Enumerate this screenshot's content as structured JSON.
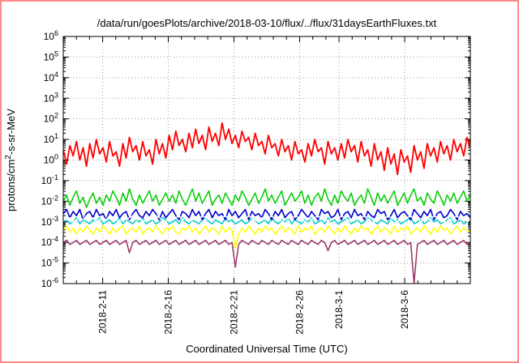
{
  "colors": {
    "frame_border": "#ff8a8a",
    "plot_border": "#000000",
    "grid": "#999999",
    "background": "#ffffff",
    "text": "#000000"
  },
  "title": "/data/run/goesPlots/archive/2018-03-10/flux/../flux/31daysEarthFluxes.txt",
  "x_axis": {
    "label": "Coordinated Universal Time (UTC)",
    "x_unit": "days",
    "ticks": [
      {
        "day": 3,
        "label": "2018-2-11"
      },
      {
        "day": 8,
        "label": "2018-2-16"
      },
      {
        "day": 13,
        "label": "2018-2-21"
      },
      {
        "day": 18,
        "label": "2018-2-26"
      },
      {
        "day": 21,
        "label": "2018-3-1"
      },
      {
        "day": 26,
        "label": "2018-3-6"
      }
    ]
  },
  "y_axis": {
    "unit_parts": [
      {
        "text": "protons/cm"
      },
      {
        "text": "2",
        "sup": true
      },
      {
        "text": "-s-sr-MeV"
      }
    ],
    "exponent_range": [
      -6,
      6
    ],
    "tick_exponents": [
      6,
      5,
      4,
      3,
      2,
      1,
      0,
      -1,
      -2,
      -3,
      -4,
      -5,
      -6
    ]
  },
  "chart_data": {
    "type": "line",
    "x_range": [
      0,
      31
    ],
    "y_scale": "log10 exponents of protons/cm2-s-sr-MeV",
    "grid": true,
    "legend": false,
    "series": [
      {
        "name": "maroon",
        "color": "#993366",
        "width": 1.5,
        "log10_values": [
          -4.0,
          -3.9,
          -4.1,
          -4.0,
          -3.9,
          -4.1,
          -4.0,
          -3.9,
          -4.1,
          -4.0,
          -3.9,
          -4.1,
          -4.0,
          -3.9,
          -4.1,
          -4.0,
          -3.9,
          -4.1,
          -4.0,
          -3.9,
          -4.5,
          -4.0,
          -3.9,
          -4.1,
          -4.0,
          -3.9,
          -4.1,
          -4.0,
          -3.9,
          -4.1,
          -4.0,
          -3.9,
          -4.1,
          -4.0,
          -3.9,
          -4.1,
          -4.0,
          -3.9,
          -4.1,
          -4.0,
          -3.9,
          -4.1,
          -4.0,
          -3.9,
          -4.1,
          -4.0,
          -3.9,
          -4.1,
          -4.0,
          -3.9,
          -4.1,
          -4.0,
          -5.2,
          -4.1,
          -3.9,
          -4.0,
          -4.1,
          -3.9,
          -4.0,
          -4.1,
          -3.9,
          -4.0,
          -4.1,
          -3.9,
          -4.0,
          -4.1,
          -3.9,
          -4.0,
          -4.1,
          -3.9,
          -4.0,
          -4.1,
          -3.9,
          -4.0,
          -4.1,
          -3.9,
          -4.0,
          -4.1,
          -3.9,
          -4.0,
          -4.4,
          -4.0,
          -3.9,
          -4.1,
          -4.0,
          -3.9,
          -4.1,
          -4.0,
          -3.9,
          -4.1,
          -4.0,
          -3.9,
          -4.1,
          -4.0,
          -3.9,
          -4.1,
          -4.0,
          -3.9,
          -4.1,
          -4.0,
          -3.9,
          -4.1,
          -4.0,
          -3.9,
          -4.1,
          -4.0,
          -6.0,
          -4.1,
          -4.0,
          -3.9,
          -4.1,
          -4.0,
          -3.9,
          -4.1,
          -4.0,
          -3.9,
          -4.1,
          -4.0,
          -3.9,
          -4.1,
          -4.0,
          -3.9,
          -4.1,
          -4.0
        ]
      },
      {
        "name": "yellow",
        "color": "#ffff00",
        "width": 1.5,
        "log10_values": [
          -3.4,
          -3.2,
          -3.5,
          -3.3,
          -3.6,
          -3.3,
          -3.5,
          -3.2,
          -3.4,
          -3.6,
          -3.3,
          -3.5,
          -3.2,
          -3.4,
          -3.6,
          -3.3,
          -3.5,
          -3.3,
          -3.2,
          -3.6,
          -3.4,
          -3.3,
          -3.5,
          -3.2,
          -3.6,
          -3.4,
          -3.3,
          -3.5,
          -3.2,
          -3.4,
          -3.6,
          -3.3,
          -3.4,
          -3.2,
          -3.5,
          -3.6,
          -3.3,
          -3.4,
          -3.2,
          -3.5,
          -3.3,
          -3.6,
          -3.4,
          -3.2,
          -3.5,
          -3.3,
          -3.4,
          -3.6,
          -3.2,
          -3.5,
          -3.3,
          -3.4,
          -4.3,
          -3.6,
          -3.3,
          -3.5,
          -3.2,
          -3.4,
          -3.6,
          -3.3,
          -3.5,
          -3.2,
          -3.4,
          -3.3,
          -3.6,
          -3.4,
          -3.2,
          -3.5,
          -3.3,
          -3.4,
          -3.6,
          -3.2,
          -3.5,
          -3.3,
          -3.4,
          -3.2,
          -3.6,
          -3.4,
          -3.3,
          -3.5,
          -3.2,
          -3.4,
          -3.6,
          -3.3,
          -3.5,
          -3.2,
          -3.4,
          -3.6,
          -3.3,
          -3.5,
          -3.2,
          -3.4,
          -3.3,
          -3.6,
          -3.4,
          -3.2,
          -3.5,
          -3.3,
          -3.4,
          -3.6,
          -3.2,
          -3.5,
          -3.3,
          -3.4,
          -3.2,
          -3.6,
          -3.4,
          -3.3,
          -3.5,
          -3.2,
          -3.4,
          -3.6,
          -3.3,
          -3.5,
          -3.2,
          -3.4,
          -3.3,
          -3.6,
          -3.4,
          -3.2,
          -3.5,
          -3.3,
          -3.4,
          -3.5
        ]
      },
      {
        "name": "green",
        "color": "#00cc00",
        "width": 1.5,
        "log10_values": [
          -2.0,
          -1.7,
          -2.2,
          -1.8,
          -1.5,
          -2.1,
          -1.8,
          -2.3,
          -1.9,
          -1.6,
          -2.1,
          -1.8,
          -2.2,
          -1.7,
          -2.0,
          -1.5,
          -1.8,
          -2.2,
          -1.6,
          -2.0,
          -1.4,
          -1.9,
          -2.2,
          -1.7,
          -2.1,
          -1.8,
          -1.5,
          -2.0,
          -1.7,
          -2.2,
          -1.9,
          -1.6,
          -2.0,
          -1.7,
          -2.1,
          -1.5,
          -1.9,
          -2.2,
          -1.8,
          -1.4,
          -2.0,
          -1.6,
          -2.1,
          -1.8,
          -1.5,
          -2.2,
          -1.9,
          -1.7,
          -2.1,
          -1.6,
          -1.9,
          -2.2,
          -1.7,
          -2.0,
          -1.5,
          -1.8,
          -2.2,
          -1.9,
          -1.6,
          -2.1,
          -1.8,
          -1.4,
          -2.0,
          -1.7,
          -2.1,
          -1.8,
          -1.5,
          -2.2,
          -1.9,
          -1.6,
          -2.0,
          -1.8,
          -1.5,
          -2.1,
          -1.7,
          -2.2,
          -1.8,
          -1.6,
          -2.0,
          -1.4,
          -1.9,
          -2.2,
          -1.7,
          -2.1,
          -1.5,
          -1.8,
          -2.0,
          -1.6,
          -2.2,
          -1.9,
          -1.7,
          -2.1,
          -1.4,
          -1.8,
          -2.2,
          -1.6,
          -2.0,
          -1.7,
          -2.1,
          -1.8,
          -1.5,
          -2.2,
          -1.9,
          -1.6,
          -2.1,
          -1.7,
          -1.4,
          -2.0,
          -1.8,
          -2.2,
          -1.6,
          -1.9,
          -2.1,
          -1.5,
          -1.8,
          -2.2,
          -1.7,
          -2.0,
          -1.6,
          -2.1,
          -1.8,
          -1.5,
          -2.0,
          -1.7
        ]
      },
      {
        "name": "cyan",
        "color": "#00cccc",
        "width": 1.5,
        "log10_values": [
          -3.0,
          -2.9,
          -3.1,
          -3.0,
          -2.8,
          -3.1,
          -2.9,
          -3.0,
          -3.1,
          -2.9,
          -3.0,
          -2.8,
          -3.1,
          -3.0,
          -2.9,
          -3.1,
          -3.0,
          -2.8,
          -3.1,
          -2.9,
          -3.0,
          -3.1,
          -2.9,
          -3.0,
          -2.8,
          -3.1,
          -3.0,
          -2.9,
          -3.1,
          -3.0,
          -2.8,
          -2.9,
          -3.1,
          -3.0,
          -2.9,
          -3.1,
          -2.8,
          -3.0,
          -3.1,
          -2.9,
          -3.0,
          -3.1,
          -2.9,
          -2.8,
          -3.0,
          -3.1,
          -2.9,
          -3.0,
          -3.1,
          -2.8,
          -3.0,
          -2.9,
          -3.1,
          -3.0,
          -2.9,
          -3.1,
          -3.0,
          -2.8,
          -2.9,
          -3.1,
          -3.0,
          -2.9,
          -3.1,
          -2.8,
          -3.0,
          -3.1,
          -2.9,
          -3.0,
          -2.8,
          -3.1,
          -2.9,
          -3.0,
          -3.1,
          -2.9,
          -3.0,
          -2.8,
          -3.1,
          -3.0,
          -2.9,
          -3.1,
          -2.8,
          -3.0,
          -2.9,
          -3.1,
          -3.0,
          -2.9,
          -2.8,
          -3.1,
          -3.0,
          -2.9,
          -3.1,
          -3.0,
          -2.8,
          -2.9,
          -3.0,
          -3.1,
          -2.9,
          -3.0,
          -3.1,
          -2.8,
          -3.0,
          -2.9,
          -3.1,
          -3.0,
          -2.9,
          -2.8,
          -3.1,
          -3.0,
          -2.9,
          -3.1,
          -3.0,
          -2.8,
          -3.0,
          -2.9,
          -3.1,
          -3.0,
          -2.9,
          -2.8,
          -3.1,
          -3.0,
          -2.9,
          -3.1,
          -3.0,
          -2.9
        ]
      },
      {
        "name": "blue",
        "color": "#0000cc",
        "width": 1.6,
        "log10_values": [
          -2.6,
          -2.4,
          -2.8,
          -2.5,
          -2.7,
          -2.4,
          -2.9,
          -2.6,
          -2.5,
          -2.8,
          -2.4,
          -2.7,
          -2.6,
          -2.9,
          -2.5,
          -2.7,
          -2.4,
          -2.8,
          -2.6,
          -2.5,
          -2.9,
          -2.6,
          -2.4,
          -2.7,
          -2.8,
          -2.5,
          -2.7,
          -2.4,
          -2.6,
          -2.9,
          -2.5,
          -2.8,
          -2.6,
          -2.4,
          -2.7,
          -2.9,
          -2.5,
          -2.6,
          -2.8,
          -2.4,
          -2.7,
          -2.5,
          -2.9,
          -2.6,
          -2.4,
          -2.8,
          -2.5,
          -2.7,
          -2.6,
          -2.9,
          -2.4,
          -2.7,
          -2.5,
          -2.8,
          -2.6,
          -2.4,
          -2.9,
          -2.5,
          -2.7,
          -2.6,
          -2.8,
          -2.4,
          -2.6,
          -2.9,
          -2.5,
          -2.7,
          -2.4,
          -2.8,
          -2.6,
          -2.5,
          -2.9,
          -2.7,
          -2.4,
          -2.6,
          -2.8,
          -2.5,
          -2.7,
          -2.9,
          -2.4,
          -2.6,
          -2.5,
          -2.8,
          -2.7,
          -2.4,
          -2.9,
          -2.6,
          -2.5,
          -2.8,
          -2.4,
          -2.7,
          -2.6,
          -2.9,
          -2.5,
          -2.7,
          -2.8,
          -2.4,
          -2.6,
          -2.5,
          -2.9,
          -2.7,
          -2.4,
          -2.8,
          -2.6,
          -2.5,
          -2.7,
          -2.9,
          -2.4,
          -2.6,
          -2.8,
          -2.5,
          -2.7,
          -2.4,
          -2.9,
          -2.6,
          -2.5,
          -2.8,
          -2.7,
          -2.4,
          -2.6,
          -2.9,
          -2.5,
          -2.7,
          -2.6,
          -2.8
        ]
      },
      {
        "name": "white",
        "color": "#ffffff",
        "width": 1.4,
        "log10_values": [
          -2.8,
          -2.9,
          -2.8,
          -3.0,
          -2.9,
          -2.8,
          -2.9,
          -2.7,
          -2.9,
          -2.8,
          -3.0,
          -2.9,
          -2.8,
          -2.9,
          -2.7,
          -2.8,
          -2.9,
          -3.0,
          -2.8,
          -2.9,
          -2.8,
          -2.7,
          -2.9,
          -2.8,
          -3.0,
          -2.9,
          -2.8,
          -2.9,
          -2.7,
          -2.8,
          -2.9,
          -3.0,
          -2.8,
          -2.9,
          -2.8,
          -2.7,
          -2.9,
          -2.8,
          -3.0,
          -2.9,
          -2.8,
          -2.9,
          -2.7,
          -2.8,
          -2.9,
          -3.0,
          -2.8,
          -2.9,
          -2.8,
          -2.7,
          -2.9,
          -2.8,
          -3.0,
          -2.9,
          -2.8,
          -2.9,
          -2.7,
          -2.8,
          -2.9,
          -3.0,
          -2.8,
          -2.9,
          -2.8,
          -2.7,
          -2.9,
          -2.8,
          -3.0,
          -2.9,
          -2.8,
          -2.9,
          -2.7,
          -2.8,
          -2.9,
          -3.0,
          -2.8,
          -2.9,
          -2.8,
          -2.7,
          -2.9,
          -2.8,
          -3.0,
          -2.9,
          -2.8,
          -2.9,
          -2.7,
          -2.8,
          -2.9,
          -3.0,
          -2.8,
          -2.9,
          -2.8,
          -2.7,
          -2.9,
          -2.8,
          -3.0,
          -2.9,
          -2.8,
          -2.9,
          -2.7,
          -2.8,
          -2.9,
          -3.0,
          -2.8,
          -2.9,
          -2.8,
          -2.7,
          -2.9,
          -2.8,
          -3.0,
          -2.9,
          -2.8,
          -2.9,
          -2.7,
          -2.8,
          -2.9,
          -3.0,
          -2.8,
          -2.9,
          -2.8,
          -2.7,
          -2.9,
          -2.8,
          -3.0,
          -2.9
        ]
      },
      {
        "name": "red",
        "color": "#ff0000",
        "width": 1.8,
        "log10_values": [
          0.5,
          -0.2,
          0.7,
          0.2,
          0.9,
          0.0,
          0.6,
          -0.3,
          0.8,
          0.1,
          1.0,
          0.3,
          0.6,
          -0.1,
          0.9,
          0.2,
          0.4,
          -0.3,
          0.8,
          0.1,
          1.1,
          0.4,
          0.7,
          0.0,
          0.9,
          0.2,
          0.5,
          -0.2,
          1.0,
          0.3,
          0.8,
          0.1,
          1.2,
          0.5,
          1.4,
          0.7,
          1.0,
          0.4,
          1.3,
          0.6,
          1.5,
          0.8,
          1.2,
          0.5,
          1.6,
          0.9,
          1.3,
          0.7,
          1.8,
          1.0,
          1.5,
          0.8,
          1.2,
          0.6,
          1.4,
          0.9,
          1.1,
          0.5,
          1.3,
          0.7,
          0.9,
          0.3,
          1.2,
          0.6,
          0.8,
          0.2,
          1.0,
          0.4,
          0.7,
          0.0,
          0.9,
          0.3,
          0.5,
          -0.1,
          0.8,
          0.2,
          1.0,
          0.4,
          0.6,
          -0.2,
          0.9,
          0.3,
          0.6,
          0.0,
          0.8,
          0.1,
          1.0,
          0.4,
          0.7,
          -0.1,
          0.9,
          0.2,
          0.5,
          -0.3,
          0.8,
          0.0,
          0.4,
          -0.5,
          0.6,
          -0.2,
          0.3,
          -0.7,
          0.5,
          -0.1,
          0.2,
          -0.6,
          0.7,
          0.0,
          0.4,
          -0.4,
          0.8,
          0.2,
          0.6,
          -0.1,
          0.9,
          0.3,
          0.7,
          0.0,
          1.0,
          0.4,
          0.8,
          0.2,
          1.1,
          0.6
        ]
      }
    ]
  }
}
